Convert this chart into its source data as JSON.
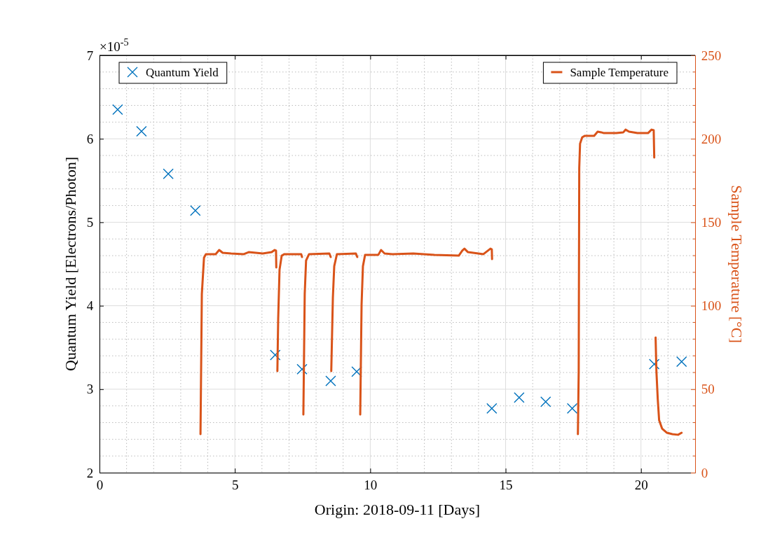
{
  "chart_data": {
    "type": "scatter",
    "xlabel": "Origin: 2018-09-11 [Days]",
    "ylabel": "Quantum Yield [Electrons/Photon]",
    "y2label": "Sample Temperature [°C]",
    "annotations": [
      "×10$^{-5}$"
    ],
    "xlim": [
      0,
      22
    ],
    "xticks": [
      0,
      5,
      10,
      15,
      20
    ],
    "ylim": [
      2,
      7
    ],
    "yticks": [
      2,
      3,
      4,
      5,
      6,
      7
    ],
    "y2lim": [
      0,
      250
    ],
    "y2ticks": [
      0,
      50,
      100,
      150,
      200,
      250
    ],
    "grid": true,
    "legend": "top",
    "series": [
      {
        "name": "Quantum Yield",
        "marker": "cross",
        "color": "#0072bd",
        "x": [
          0.67,
          1.55,
          2.54,
          3.54,
          6.49,
          7.48,
          8.54,
          9.5,
          14.49,
          15.5,
          16.48,
          17.46,
          20.49,
          21.5
        ],
        "values": [
          6.35,
          6.09,
          5.58,
          5.14,
          3.41,
          3.24,
          3.1,
          3.21,
          2.77,
          2.9,
          2.85,
          2.77,
          3.3,
          3.33
        ]
      },
      {
        "name": "Sample Temperature",
        "type": "line",
        "axis": "y2",
        "marker": "none",
        "color": "#d95319",
        "x": [
          3.73,
          3.78,
          3.86,
          3.93,
          4.29,
          4.42,
          4.55,
          4.86,
          5.33,
          5.51,
          6.03,
          6.36,
          6.47,
          6.52,
          6.53,
          null,
          6.57,
          6.6,
          6.65,
          6.73,
          6.83,
          7.45,
          7.48,
          null,
          7.53,
          7.58,
          7.63,
          7.74,
          8.49,
          8.54,
          null,
          8.56,
          8.62,
          8.67,
          8.77,
          9.47,
          9.52,
          null,
          9.63,
          9.68,
          9.73,
          9.81,
          10.3,
          10.4,
          10.53,
          10.82,
          11.59,
          12.37,
          13.27,
          13.4,
          13.48,
          13.61,
          14.18,
          14.44,
          14.49,
          14.5,
          null,
          17.67,
          17.7,
          17.72,
          17.75,
          17.83,
          17.93,
          18.27,
          18.4,
          18.53,
          18.63,
          19.09,
          19.35,
          19.43,
          19.56,
          19.87,
          20.26,
          20.39,
          20.47,
          20.49,
          null,
          20.54,
          20.57,
          20.62,
          20.67,
          20.78,
          20.96,
          21.16,
          21.37,
          21.5
        ],
        "values": [
          23.1,
          107,
          128.8,
          130.9,
          130.9,
          133.4,
          131.7,
          131.3,
          130.9,
          132.1,
          131.3,
          132.1,
          133.4,
          133,
          122.9,
          null,
          60.8,
          92.3,
          121.6,
          130,
          130.9,
          130.9,
          129.2,
          null,
          34.8,
          107,
          127.1,
          130.9,
          131.3,
          129.2,
          null,
          60.8,
          104.9,
          123.7,
          130.9,
          131.3,
          129.2,
          null,
          34.8,
          100.7,
          123.7,
          130.5,
          130.5,
          133.4,
          131.3,
          130.9,
          131.3,
          130.5,
          130,
          133,
          134.2,
          132.1,
          130.9,
          134.2,
          133.8,
          127.9,
          null,
          23.1,
          60.8,
          182.5,
          197.1,
          200.9,
          201.8,
          201.8,
          204.3,
          203.9,
          203.4,
          203.4,
          203.9,
          205.5,
          204.3,
          203.4,
          203.4,
          205.5,
          205.1,
          188.8,
          null,
          81,
          60.8,
          44,
          31.5,
          26.4,
          23.9,
          23.1,
          22.7,
          23.9
        ]
      }
    ]
  }
}
